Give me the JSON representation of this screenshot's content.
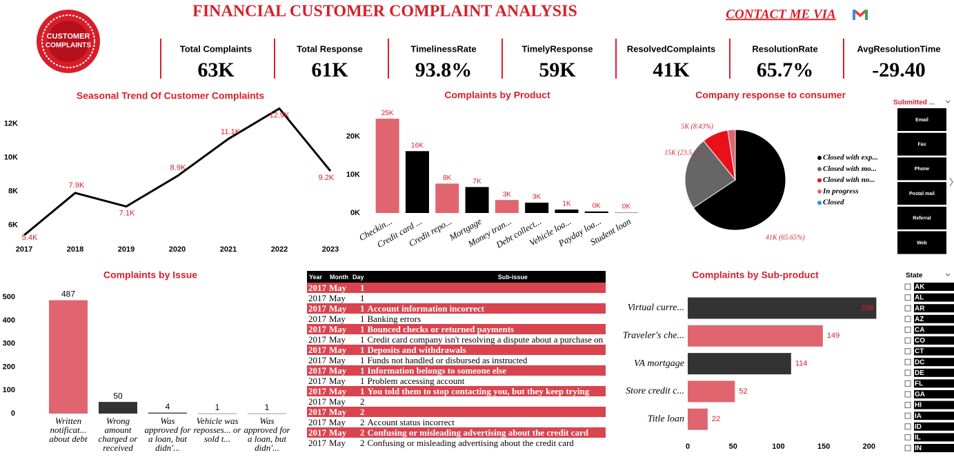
{
  "header": {
    "title": "FINANCIAL CUSTOMER COMPLAINT ANALYSIS",
    "contact": "CONTACT ME VIA",
    "logo": [
      "CUSTOMER",
      "COMPLAINTS"
    ]
  },
  "kpis": [
    {
      "label": "Total Complaints",
      "value": "63K"
    },
    {
      "label": "Total Response",
      "value": "61K"
    },
    {
      "label": "TimelinessRate",
      "value": "93.8%"
    },
    {
      "label": "TimelyResponse",
      "value": "59K"
    },
    {
      "label": "ResolvedComplaints",
      "value": "41K"
    },
    {
      "label": "ResolutionRate",
      "value": "65.7%"
    },
    {
      "label": "AvgResolutionTime",
      "value": "-29.40"
    }
  ],
  "chart_data": [
    {
      "type": "line",
      "title": "Seasonal Trend Of Customer Complaints",
      "categories": [
        "2017",
        "2018",
        "2019",
        "2020",
        "2021",
        "2022",
        "2023"
      ],
      "values": [
        5400,
        7900,
        7100,
        8900,
        11100,
        12900,
        9200
      ],
      "value_labels": [
        "5.4K",
        "7.9K",
        "7.1K",
        "8.9K",
        "11.1K",
        "12.9K",
        "9.2K"
      ],
      "color": "#000000",
      "ylim": [
        5000,
        13000
      ],
      "yticks": [
        {
          "value": 6000,
          "label": "6K"
        },
        {
          "value": 8000,
          "label": "8K"
        },
        {
          "value": 10000,
          "label": "10K"
        },
        {
          "value": 12000,
          "label": "12K"
        }
      ]
    },
    {
      "type": "bar",
      "title": "Complaints by Product",
      "categories": [
        "Checkin...",
        "Credit card ...",
        "Credit repo...",
        "Mortgage",
        "Money tran...",
        "Debt collect...",
        "Vehicle loa...",
        "Payday loa...",
        "Student loan"
      ],
      "values": [
        24700,
        16200,
        7700,
        6800,
        3400,
        2700,
        900,
        400,
        200
      ],
      "value_labels": [
        "25K",
        "16K",
        "8K",
        "7K",
        "3K",
        "3K",
        "1K",
        "0K",
        "0K"
      ],
      "colors": [
        "#e0656e",
        "#000000",
        "#e0656e",
        "#000000",
        "#e0656e",
        "#000000",
        "#000000",
        "#000000",
        "#999999"
      ],
      "ylim": [
        0,
        26000
      ],
      "yticks": [
        {
          "value": 0,
          "label": "0K"
        },
        {
          "value": 10000,
          "label": "10K"
        },
        {
          "value": 20000,
          "label": "20K"
        }
      ]
    },
    {
      "type": "pie",
      "title": "Company response to consumer",
      "categories": [
        "Closed with exp...",
        "Closed with mo...",
        "Closed with no...",
        "In progress",
        "Closed"
      ],
      "values": [
        65.65,
        23.5,
        8.43,
        2.42,
        0
      ],
      "value_labels": [
        "41K (65.65%)",
        "15K (23.5...)",
        "5K (8.43%)",
        null,
        null
      ],
      "colors": [
        "#000000",
        "#666666",
        "#e8101a",
        "#e0656e",
        "#1e90ff"
      ]
    },
    {
      "type": "bar",
      "title": "Complaints by Issue",
      "categories": [
        "Written notificat... about debt",
        "Wrong amount charged or received",
        "Was approved for a loan, but didn'...",
        "Vehicle was reposses... or sold t...",
        "Was approved for a loan, but didn'..."
      ],
      "values": [
        487,
        50,
        4,
        1,
        1
      ],
      "colors": [
        "#e0656e",
        "#333333",
        "#333333",
        "#999999",
        "#999999"
      ],
      "ylim": [
        0,
        530
      ],
      "yticks": [
        0,
        100,
        200,
        300,
        400,
        500
      ]
    },
    {
      "type": "hbar",
      "title": "Complaints by Sub-product",
      "categories": [
        "Virtual curre...",
        "Traveler's che...",
        "VA mortgage",
        "Store credit c...",
        "Title loan"
      ],
      "values": [
        208,
        149,
        114,
        52,
        22
      ],
      "colors": [
        "#333333",
        "#e0656e",
        "#333333",
        "#e0656e",
        "#e0656e"
      ],
      "xlim": [
        0,
        210
      ],
      "xticks": [
        0,
        50,
        100,
        150,
        200
      ]
    }
  ],
  "table": {
    "columns": [
      "Year",
      "Month",
      "Day",
      "Sub-issue"
    ],
    "rows": [
      [
        2017,
        "May",
        1,
        null
      ],
      [
        2017,
        "May",
        1,
        null
      ],
      [
        2017,
        "May",
        1,
        "Account information incorrect"
      ],
      [
        2017,
        "May",
        1,
        "Banking errors"
      ],
      [
        2017,
        "May",
        1,
        "Bounced checks or returned payments"
      ],
      [
        2017,
        "May",
        1,
        "Credit card company isn't resolving a dispute about a purchase on your statement"
      ],
      [
        2017,
        "May",
        1,
        "Deposits and withdrawals"
      ],
      [
        2017,
        "May",
        1,
        "Funds not handled or disbursed as instructed"
      ],
      [
        2017,
        "May",
        1,
        "Information belongs to someone else"
      ],
      [
        2017,
        "May",
        1,
        "Problem accessing account"
      ],
      [
        2017,
        "May",
        1,
        "You told them to stop contacting you, but they keep trying"
      ],
      [
        2017,
        "May",
        2,
        null
      ],
      [
        2017,
        "May",
        2,
        null
      ],
      [
        2017,
        "May",
        2,
        "Account status incorrect"
      ],
      [
        2017,
        "May",
        2,
        "Confusing or misleading advertising about the credit card"
      ],
      [
        2017,
        "May",
        2,
        "Confusing or misleading advertising about the credit card"
      ]
    ]
  },
  "slicers": [
    {
      "title": "Submitted ...",
      "options": [
        "Email",
        "Fax",
        "Phone",
        "Postal mail",
        "Referral",
        "Web"
      ]
    },
    {
      "title": "State",
      "options": [
        "AK",
        "AL",
        "AR",
        "AZ",
        "CA",
        "CO",
        "CT",
        "DC",
        "DE",
        "FL",
        "GA",
        "HI",
        "IA",
        "ID",
        "IL",
        "IN"
      ]
    }
  ]
}
